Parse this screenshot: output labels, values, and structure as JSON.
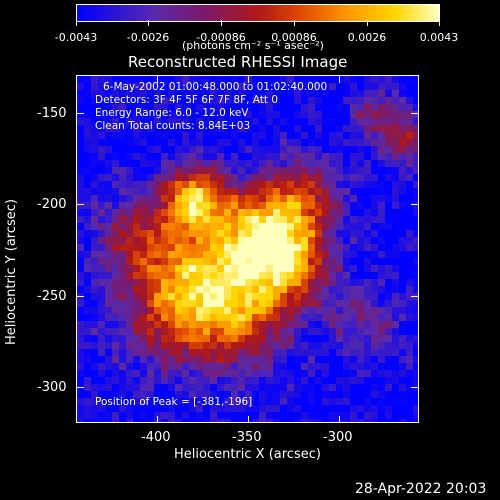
{
  "colorbar": {
    "tick_labels": [
      "-0.0043",
      "-0.0026",
      "-0.00086",
      "0.00086",
      "0.0026",
      "0.0043"
    ],
    "units": "(photons cm⁻² s⁻¹ asec⁻²)"
  },
  "chart_data": {
    "type": "heatmap",
    "title": "Reconstructed RHESSI Image",
    "xlabel": "Heliocentric X (arcsec)",
    "ylabel": "Heliocentric Y (arcsec)",
    "xlim": [
      -445,
      -258
    ],
    "ylim": [
      -322,
      -128
    ],
    "x_ticks": [
      -400,
      -350,
      -300
    ],
    "y_ticks": [
      -150,
      -200,
      -250,
      -300
    ],
    "x_tick_labels": [
      "-400",
      "-350",
      "-300"
    ],
    "y_tick_labels": [
      "-150",
      "-200",
      "-250",
      "-300"
    ],
    "value_range": [
      -0.0043,
      0.0043
    ],
    "peak": [
      -381,
      -196
    ]
  },
  "annotations": {
    "time_range": "6-May-2002 01:00:48.000 to 01:02:40.000",
    "detectors": "Detectors: 3F 4F 5F 6F 7F 8F, Att 0",
    "energy": "Energy Range: 6.0 - 12.0 keV",
    "clean": "Clean    Total counts: 8.84E+03",
    "peak": "Position of Peak = [-381,-196]"
  },
  "footer_timestamp": "28-Apr-2022 20:03"
}
